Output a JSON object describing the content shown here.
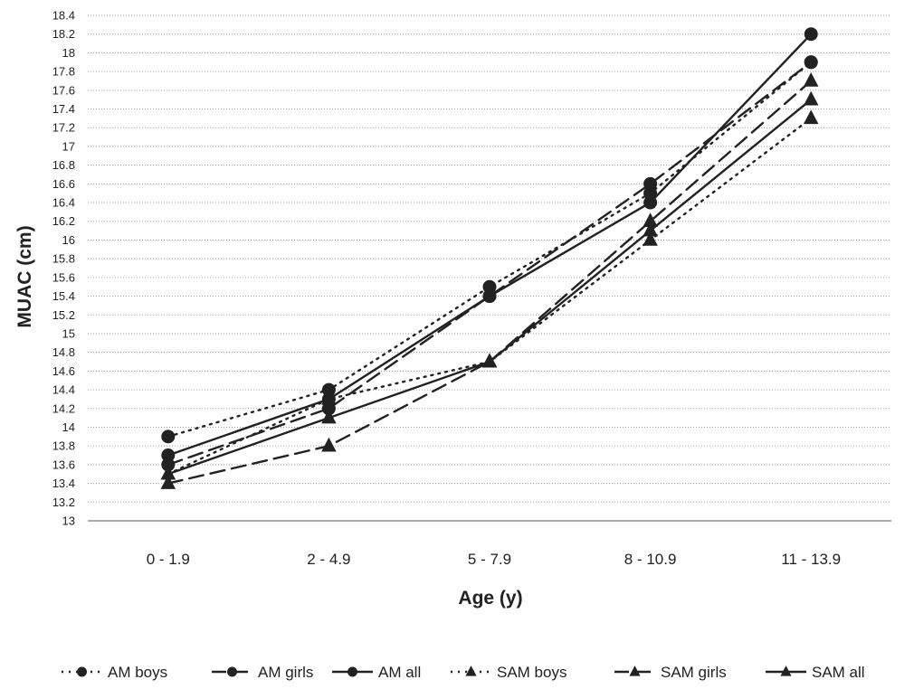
{
  "chart_data": {
    "type": "line",
    "xlabel": "Age (y)",
    "ylabel": "MUAC (cm)",
    "ylim": [
      13,
      18.4
    ],
    "ytick_step": 0.2,
    "grid": "horizontal dotted",
    "legend_position": "bottom",
    "categories": [
      "0 - 1.9",
      "2 - 4.9",
      "5 - 7.9",
      "8 - 10.9",
      "11 - 13.9"
    ],
    "series": [
      {
        "name": "AM boys",
        "marker": "circle",
        "dash": "dotted",
        "values": [
          13.9,
          14.4,
          15.5,
          16.5,
          17.9
        ]
      },
      {
        "name": "AM girls",
        "marker": "circle",
        "dash": "dashed",
        "values": [
          13.6,
          14.2,
          15.4,
          16.6,
          17.9
        ]
      },
      {
        "name": "AM all",
        "marker": "circle",
        "dash": "solid",
        "values": [
          13.7,
          14.3,
          15.4,
          16.4,
          18.2
        ]
      },
      {
        "name": "SAM boys",
        "marker": "triangle",
        "dash": "dotted",
        "values": [
          13.5,
          14.3,
          14.7,
          16.0,
          17.3
        ]
      },
      {
        "name": "SAM girls",
        "marker": "triangle",
        "dash": "dashed",
        "values": [
          13.4,
          13.8,
          14.7,
          16.2,
          17.7
        ]
      },
      {
        "name": "SAM all",
        "marker": "triangle",
        "dash": "solid",
        "values": [
          13.5,
          14.1,
          14.7,
          16.1,
          17.5
        ]
      }
    ]
  }
}
